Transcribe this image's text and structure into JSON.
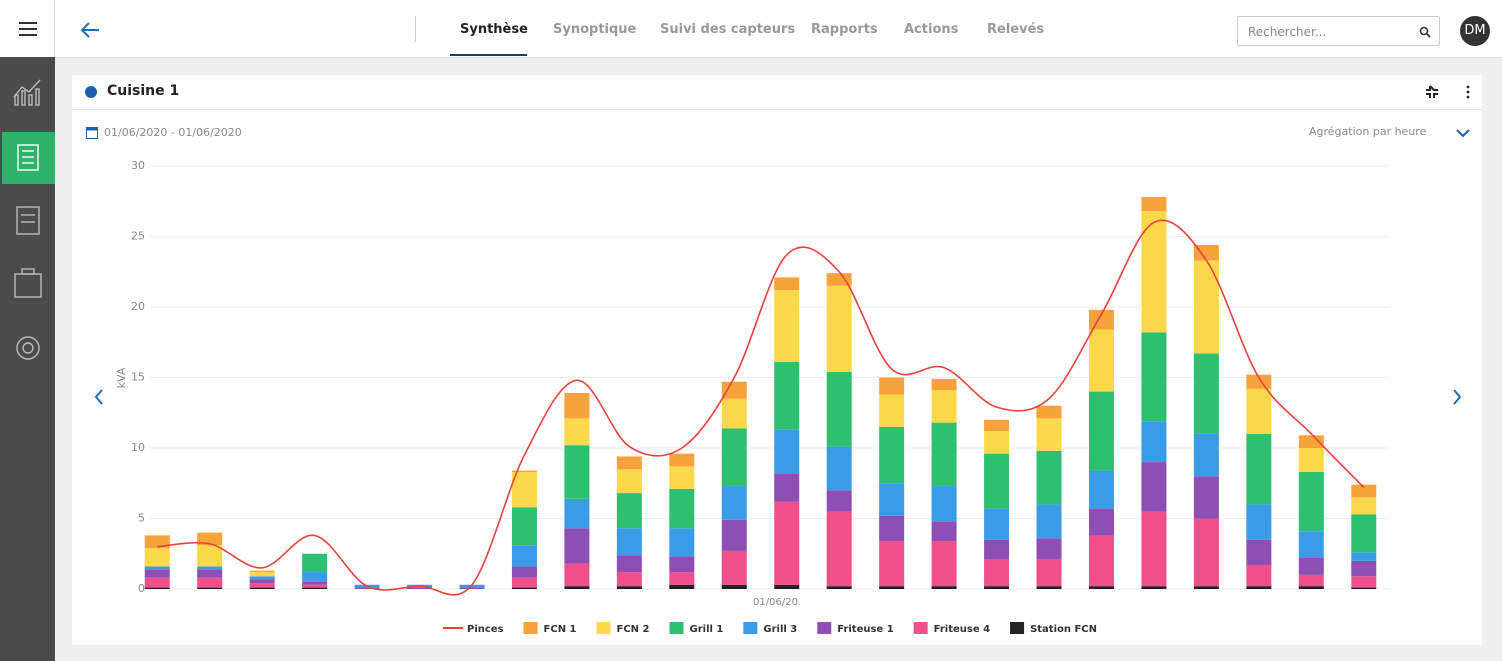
{
  "header": {
    "tabs": [
      "Synthèse",
      "Synoptique",
      "Suivi des capteurs",
      "Rapports",
      "Actions",
      "Relevés"
    ],
    "search_placeholder": "Rechercher...",
    "avatar": "DM"
  },
  "panel": {
    "title": "Cuisine 1",
    "date_range": "01/06/2020 - 01/06/2020",
    "aggregation": "Agrégation par heure"
  },
  "chart_data": {
    "type": "bar",
    "stacked": true,
    "ylabel": "kVA",
    "xlabel": "01/06/20",
    "categories": [
      null,
      null,
      null,
      null,
      null,
      null,
      null,
      null,
      null,
      null,
      null,
      null,
      null,
      null,
      null,
      null,
      null,
      null,
      null,
      null,
      null,
      null,
      null,
      null
    ],
    "ylim": [
      0,
      30
    ],
    "yticks": [
      0,
      5,
      10,
      15,
      20,
      25,
      30
    ],
    "grid": true,
    "series": [
      {
        "name": "Pinces",
        "type": "line",
        "color": "#e8423f",
        "values": [
          3.0,
          3.2,
          1.5,
          3.8,
          0.2,
          0.2,
          0.3,
          9.5,
          14.8,
          10.1,
          10.0,
          15.0,
          23.7,
          22.5,
          15.6,
          15.7,
          12.9,
          13.5,
          19.5,
          26.0,
          23.3,
          15.0,
          11.0,
          7.2
        ]
      },
      {
        "name": "FCN 1",
        "color": "#f7a23b",
        "values": [
          0.9,
          0.9,
          0.1,
          0,
          0,
          0,
          0,
          0.1,
          1.8,
          0.9,
          0.9,
          1.2,
          0.9,
          0.9,
          1.2,
          0.8,
          0.8,
          0.9,
          1.4,
          1.0,
          1.1,
          1.0,
          0.9,
          0.9
        ]
      },
      {
        "name": "FCN 2",
        "color": "#fbd84a",
        "values": [
          1.3,
          1.5,
          0.3,
          0,
          0,
          0,
          0,
          2.5,
          1.9,
          1.7,
          1.6,
          2.1,
          5.1,
          6.1,
          2.3,
          2.3,
          1.6,
          2.3,
          4.4,
          8.6,
          6.6,
          3.2,
          1.7,
          1.2
        ]
      },
      {
        "name": "Grill 1",
        "color": "#2fbf71",
        "values": [
          0,
          0,
          0,
          1.3,
          0,
          0,
          0,
          2.7,
          3.8,
          2.5,
          2.8,
          4.1,
          4.8,
          5.3,
          4.0,
          4.5,
          3.9,
          3.8,
          5.6,
          6.3,
          5.7,
          5.0,
          4.2,
          2.7
        ]
      },
      {
        "name": "Grill 3",
        "color": "#3a9be8",
        "values": [
          0.2,
          0.2,
          0.2,
          0.7,
          0.2,
          0.2,
          0.2,
          1.5,
          2.1,
          1.9,
          2.0,
          2.4,
          3.1,
          3.1,
          2.3,
          2.5,
          2.2,
          2.4,
          2.7,
          2.9,
          3.0,
          2.5,
          1.9,
          0.6
        ]
      },
      {
        "name": "Friteuse 1",
        "color": "#8e4fb5",
        "values": [
          0.6,
          0.6,
          0.3,
          0.2,
          0.1,
          0.1,
          0.1,
          0.8,
          2.5,
          1.2,
          1.1,
          2.2,
          2.0,
          1.5,
          1.8,
          1.4,
          1.4,
          1.5,
          1.9,
          3.5,
          3.0,
          1.8,
          1.2,
          1.1
        ]
      },
      {
        "name": "Friteuse 4",
        "color": "#f04f8c",
        "values": [
          0.7,
          0.7,
          0.3,
          0.2,
          0,
          0,
          0,
          0.7,
          1.6,
          1.0,
          0.9,
          2.4,
          5.9,
          5.3,
          3.2,
          3.2,
          1.9,
          1.9,
          3.6,
          5.3,
          4.8,
          1.5,
          0.8,
          0.8
        ]
      },
      {
        "name": "Station FCN",
        "color": "#222222",
        "values": [
          0.1,
          0.1,
          0.1,
          0.1,
          0,
          0,
          0,
          0.1,
          0.2,
          0.2,
          0.3,
          0.3,
          0.3,
          0.2,
          0.2,
          0.2,
          0.2,
          0.2,
          0.2,
          0.2,
          0.2,
          0.2,
          0.2,
          0.1
        ]
      }
    ]
  }
}
